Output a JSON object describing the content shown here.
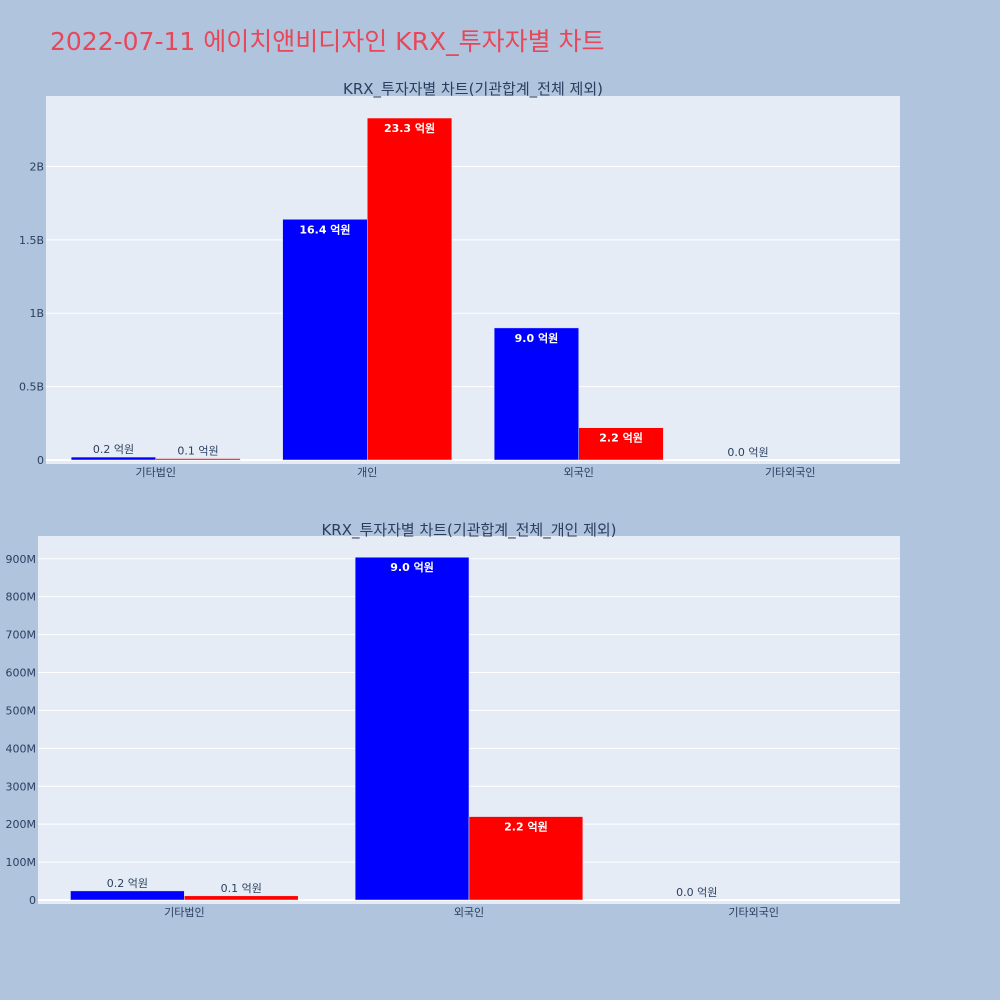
{
  "page": {
    "title": "2022-07-11 에이치앤비디자인 KRX_투자자별 차트",
    "title_color": "#e8475a",
    "background": "#b0c4de",
    "plot_background": "#e5ecf6"
  },
  "chart_data": [
    {
      "type": "bar",
      "title": "KRX_투자자별 차트(기관합계_전체 제외)",
      "categories": [
        "기타법인",
        "개인",
        "외국인",
        "기타외국인"
      ],
      "series": [
        {
          "color": "#0000ff",
          "values": [
            20000000,
            1640000000,
            900000000,
            0
          ],
          "labels": [
            "0.2 억원",
            "16.4 억원",
            "9.0 억원",
            "0.0 억원"
          ]
        },
        {
          "color": "#ff0000",
          "values": [
            10000000,
            2330000000,
            220000000,
            0
          ],
          "labels": [
            "0.1 억원",
            "23.3 억원",
            "2.2 억원",
            ""
          ]
        }
      ],
      "ylim": [
        0,
        2480000000
      ],
      "yticks": [
        0,
        500000000,
        1000000000,
        1500000000,
        2000000000
      ],
      "yticklabels": [
        "0",
        "0.5B",
        "1B",
        "1.5B",
        "2B"
      ],
      "xlabel": "",
      "ylabel": "",
      "grid": true
    },
    {
      "type": "bar",
      "title": "KRX_투자자별 차트(기관합계_전체_개인 제외)",
      "categories": [
        "기타법인",
        "외국인",
        "기타외국인"
      ],
      "series": [
        {
          "color": "#0000ff",
          "values": [
            24000000,
            904000000,
            0
          ],
          "labels": [
            "0.2 억원",
            "9.0 억원",
            "0.0 억원"
          ]
        },
        {
          "color": "#ff0000",
          "values": [
            11000000,
            220000000,
            0
          ],
          "labels": [
            "0.1 억원",
            "2.2 억원",
            ""
          ]
        }
      ],
      "ylim": [
        0,
        960000000
      ],
      "yticks": [
        0,
        100000000,
        200000000,
        300000000,
        400000000,
        500000000,
        600000000,
        700000000,
        800000000,
        900000000
      ],
      "yticklabels": [
        "0",
        "100M",
        "200M",
        "300M",
        "400M",
        "500M",
        "600M",
        "700M",
        "800M",
        "900M"
      ],
      "xlabel": "",
      "ylabel": "",
      "grid": true
    }
  ]
}
